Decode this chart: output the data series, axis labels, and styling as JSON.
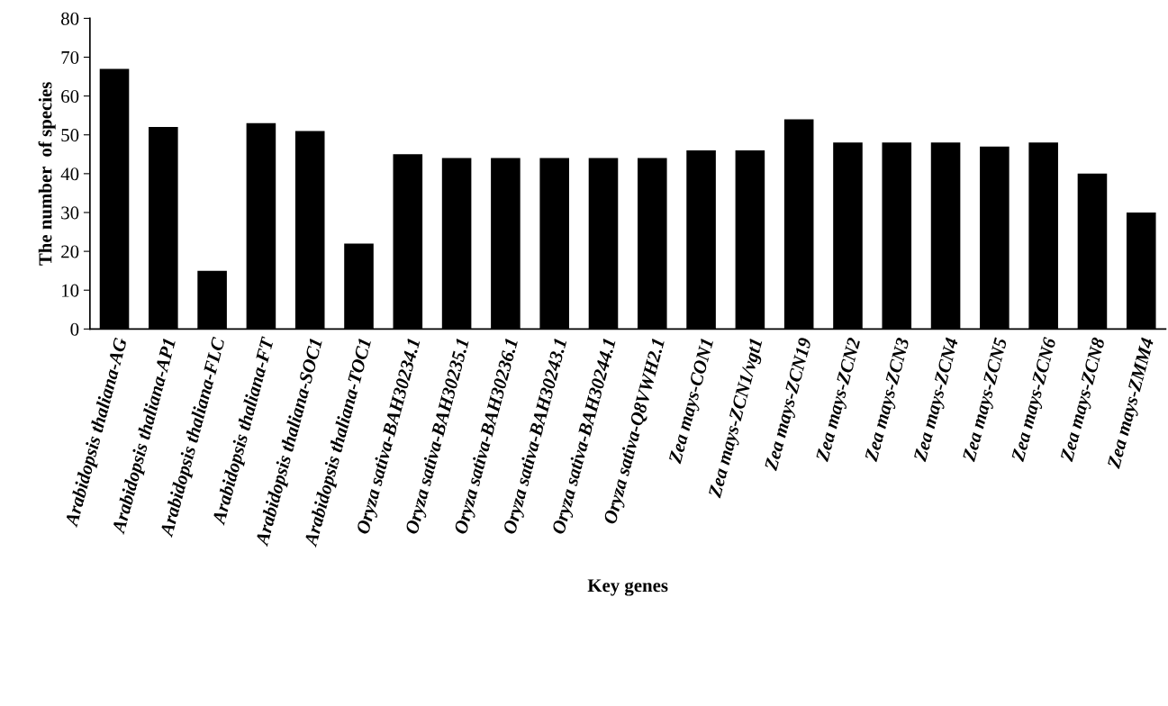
{
  "chart_data": {
    "type": "bar",
    "xlabel": "Key genes",
    "ylabel": "The number  of species",
    "categories": [
      "Arabidopsis thaliana-AG",
      "Arabidopsis thaliana-AP1",
      "Arabidopsis thaliana-FLC",
      "Arabidopsis thaliana-FT",
      "Arabidopsis thaliana-SOC1",
      "Arabidopsis thaliana-TOC1",
      "Oryza sativa-BAH30234.1",
      "Oryza sativa-BAH30235.1",
      "Oryza sativa-BAH30236.1",
      "Oryza sativa-BAH30243.1",
      "Oryza sativa-BAH30244.1",
      "Oryza sativa-Q8VWH2.1",
      "Zea mays-CON1",
      "Zea mays-ZCN1/vgt1",
      "Zea mays-ZCN19",
      "Zea mays-ZCN2",
      "Zea mays-ZCN3",
      "Zea mays-ZCN4",
      "Zea mays-ZCN5",
      "Zea mays-ZCN6",
      "Zea mays-ZCN8",
      "Zea mays-ZMM4"
    ],
    "values": [
      67,
      52,
      15,
      53,
      51,
      22,
      45,
      44,
      44,
      44,
      44,
      44,
      46,
      46,
      54,
      48,
      48,
      48,
      47,
      48,
      40,
      30
    ],
    "color": "#000000",
    "ylim": [
      0,
      80
    ],
    "yticks": [
      0,
      10,
      20,
      30,
      40,
      50,
      60,
      70,
      80
    ]
  }
}
